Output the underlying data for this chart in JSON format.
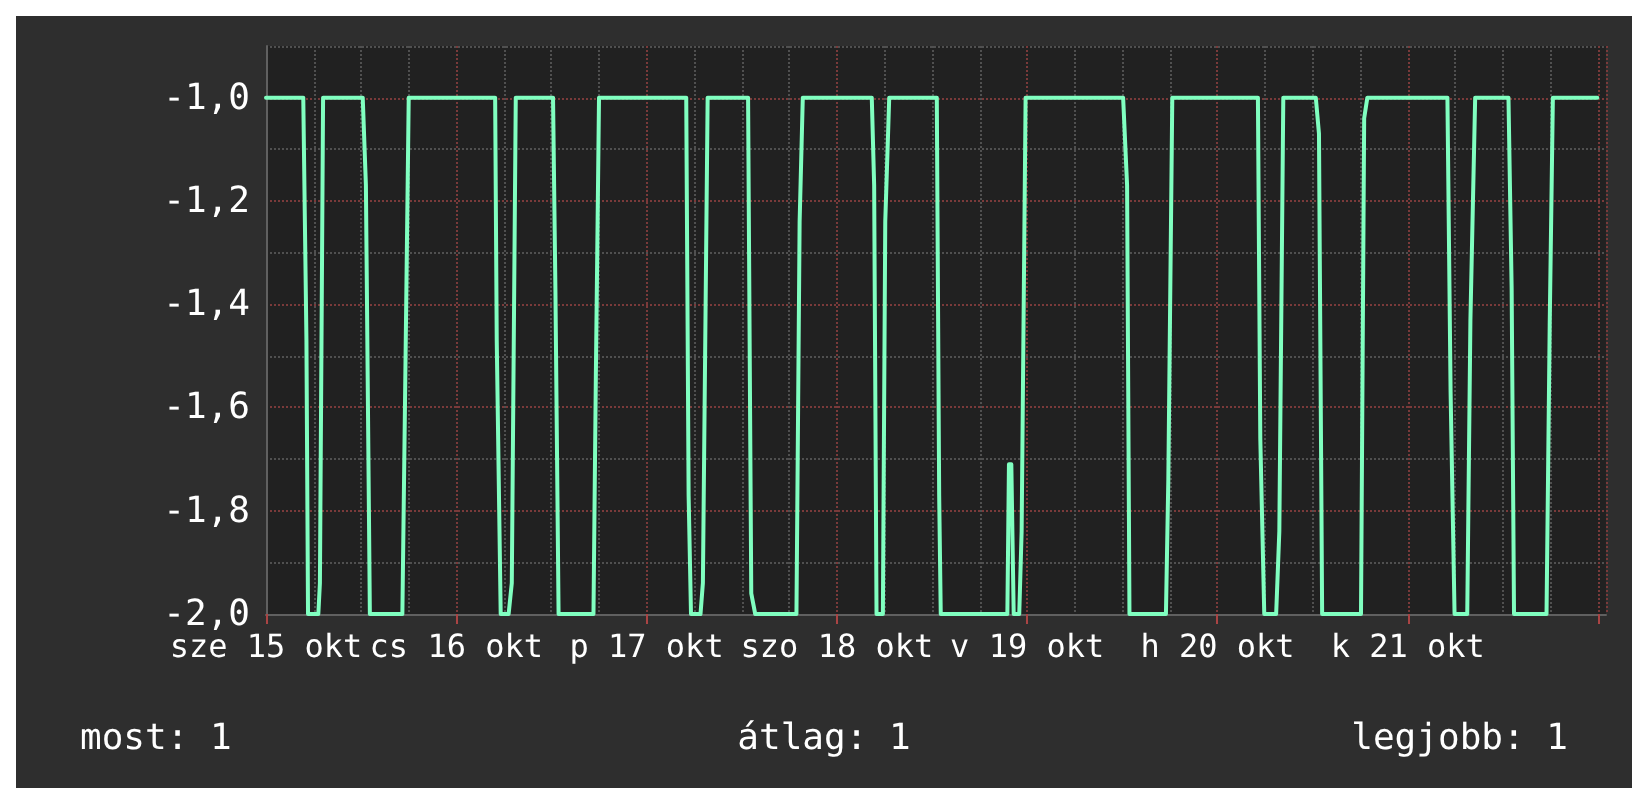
{
  "chart_data": {
    "type": "line",
    "x": [
      "--10-15T00:00",
      "--10-15T04:42",
      "--10-15T05:06",
      "--10-15T05:18",
      "--10-15T06:36",
      "--10-15T06:48",
      "--10-15T07:12",
      "--10-15T12:12",
      "--10-15T12:36",
      "--10-15T13:06",
      "--10-15T17:12",
      "--10-15T17:30",
      "--10-15T18:00",
      "--10-16T04:54",
      "--10-16T05:06",
      "--10-16T05:36",
      "--10-16T06:36",
      "--10-16T07:00",
      "--10-16T07:30",
      "--10-16T12:12",
      "--10-16T12:30",
      "--10-16T12:54",
      "--10-16T17:18",
      "--10-16T17:36",
      "--10-16T18:00",
      "--10-17T05:00",
      "--10-17T05:18",
      "--10-17T05:36",
      "--10-17T06:48",
      "--10-17T07:06",
      "--10-17T07:42",
      "--10-17T12:48",
      "--10-17T13:12",
      "--10-17T13:42",
      "--10-17T18:54",
      "--10-17T19:18",
      "--10-17T19:42",
      "--10-18T04:24",
      "--10-18T04:42",
      "--10-18T05:00",
      "--10-18T05:48",
      "--10-18T06:06",
      "--10-18T06:36",
      "--10-18T12:36",
      "--10-18T12:54",
      "--10-18T13:06",
      "--10-18T21:30",
      "--10-18T21:42",
      "--10-18T22:00",
      "--10-18T22:18",
      "--10-18T23:00",
      "--10-18T23:18",
      "--10-18T23:48",
      "--10-19T12:06",
      "--10-19T12:36",
      "--10-19T12:54",
      "--10-19T17:30",
      "--10-19T17:48",
      "--10-19T18:18",
      "--10-20T05:06",
      "--10-20T05:24",
      "--10-20T05:54",
      "--10-20T07:24",
      "--10-20T07:48",
      "--10-20T08:18",
      "--10-20T12:24",
      "--10-20T12:48",
      "--10-20T13:12",
      "--10-20T18:06",
      "--10-20T18:30",
      "--10-20T18:54",
      "--10-21T05:00",
      "--10-21T05:24",
      "--10-21T05:54",
      "--10-21T07:30",
      "--10-21T07:54",
      "--10-21T08:30",
      "--10-21T12:42",
      "--10-21T13:06",
      "--10-21T13:24",
      "--10-21T17:30",
      "--10-21T17:54",
      "--10-21T18:18",
      "--10-21T23:54"
    ],
    "series": [
      {
        "color": "#80ffc0",
        "values": [
          -1,
          -1,
          -1.47,
          -2,
          -2,
          -1.94,
          -1,
          -1,
          -1.17,
          -2,
          -2,
          -1.63,
          -1,
          -1,
          -1.47,
          -2,
          -2,
          -1.94,
          -1,
          -1,
          -1.37,
          -2,
          -2,
          -1.54,
          -1,
          -1,
          -1.77,
          -2,
          -2,
          -1.94,
          -1,
          -1,
          -1.96,
          -2,
          -2,
          -1.24,
          -1,
          -1,
          -1.17,
          -2,
          -2,
          -1.24,
          -1,
          -1,
          -1.77,
          -2,
          -2,
          -1.71,
          -1.71,
          -2,
          -2,
          -1.84,
          -1,
          -1,
          -1.17,
          -2,
          -2,
          -1.74,
          -1,
          -1,
          -1.66,
          -2,
          -2,
          -1.84,
          -1,
          -1,
          -1.07,
          -2,
          -2,
          -1.04,
          -1,
          -1,
          -1.57,
          -2,
          -2,
          -1.43,
          -1,
          -1,
          -1.37,
          -2,
          -2,
          -1.44,
          -1,
          -1
        ]
      }
    ],
    "xlim": [
      "--10-15T00:00",
      "--10-22T01:00"
    ],
    "xticks": [
      {
        "value": "--10-15",
        "label": "sze 15 okt"
      },
      {
        "value": "--10-16",
        "label": "cs 16 okt"
      },
      {
        "value": "--10-17",
        "label": "p 17 okt"
      },
      {
        "value": "--10-18",
        "label": "szo 18 okt"
      },
      {
        "value": "--10-19",
        "label": "v 19 okt"
      },
      {
        "value": "--10-20",
        "label": "h 20 okt"
      },
      {
        "value": "--10-21",
        "label": "k 21 okt"
      }
    ],
    "ylim": [
      -2.0,
      -0.9
    ],
    "yticks": [
      {
        "value": -2.0,
        "label": "-2,0"
      },
      {
        "value": -1.8,
        "label": "-1,8"
      },
      {
        "value": -1.6,
        "label": "-1,6"
      },
      {
        "value": -1.4,
        "label": "-1,4"
      },
      {
        "value": -1.2,
        "label": "-1,2"
      },
      {
        "value": -1.0,
        "label": "-1,0"
      }
    ],
    "grid": true,
    "marker": "none",
    "line_style": "solid",
    "annotations": [
      "most: 1",
      "átlag: 1",
      "legjobb: 1"
    ]
  }
}
